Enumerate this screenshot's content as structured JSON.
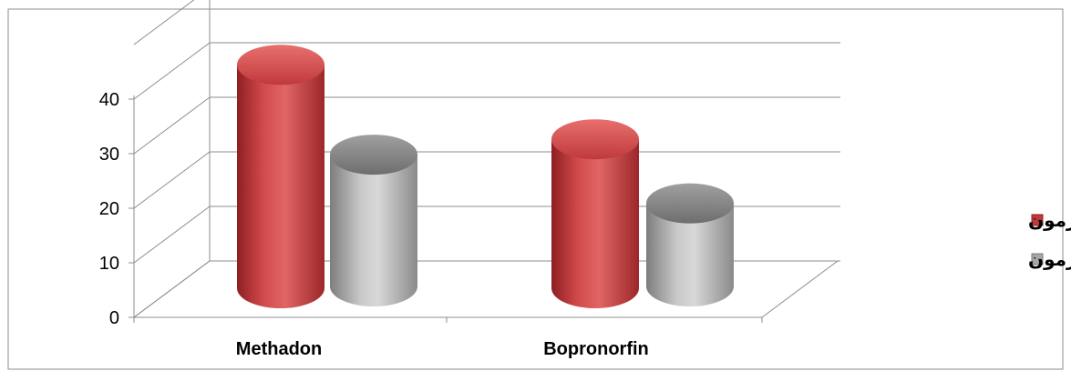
{
  "chart_data": {
    "type": "bar",
    "style": "3d-cylinder",
    "categories": [
      "Methadon",
      "Bopronorfin"
    ],
    "series": [
      {
        "name": "پیش آزمون",
        "values": [
          39,
          26
        ],
        "color": "#c0393b"
      },
      {
        "name": "پس آزمون",
        "values": [
          23,
          14.5
        ],
        "color": "#a6a6a6"
      }
    ],
    "yticks": [
      0,
      10,
      20,
      30,
      40
    ],
    "ylim": [
      0,
      50
    ],
    "grid": true,
    "legend_position": "right"
  }
}
